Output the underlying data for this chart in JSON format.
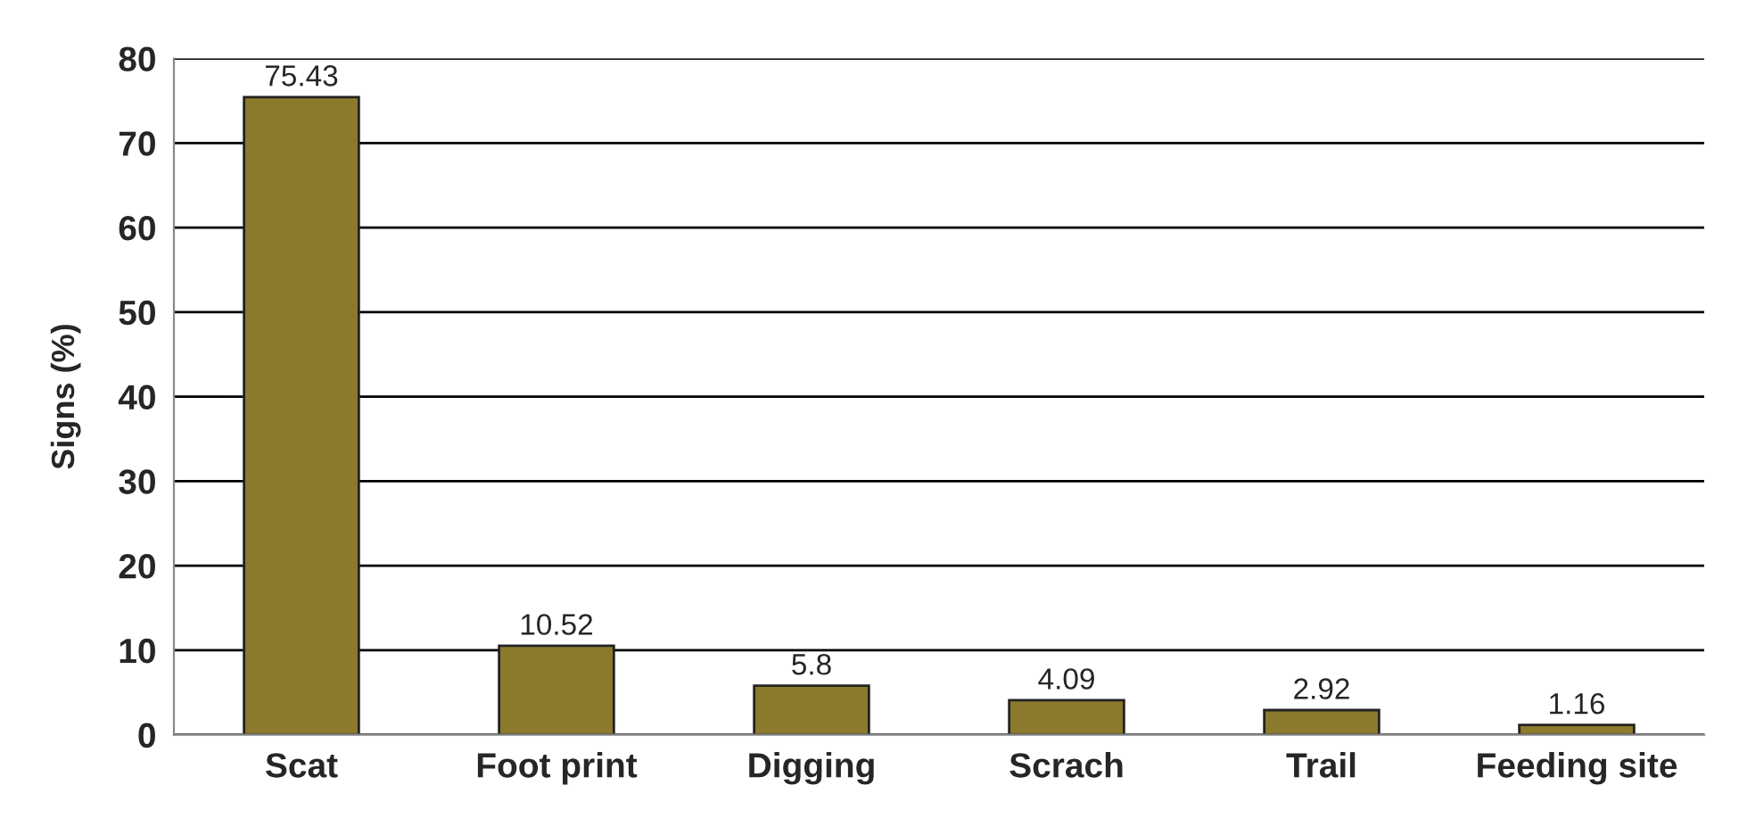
{
  "chart_data": {
    "type": "bar",
    "ylabel": "Signs (%)",
    "categories": [
      "Scat",
      "Foot print",
      "Digging",
      "Scrach",
      "Trail",
      "Feeding site"
    ],
    "values": [
      75.43,
      10.52,
      5.8,
      4.09,
      2.92,
      1.16
    ],
    "color": "#8c7a2c",
    "ylim": [
      0,
      80
    ],
    "yticks": [
      0,
      10,
      20,
      30,
      40,
      50,
      60,
      70,
      80
    ],
    "grid": "y",
    "data_labels": true
  }
}
